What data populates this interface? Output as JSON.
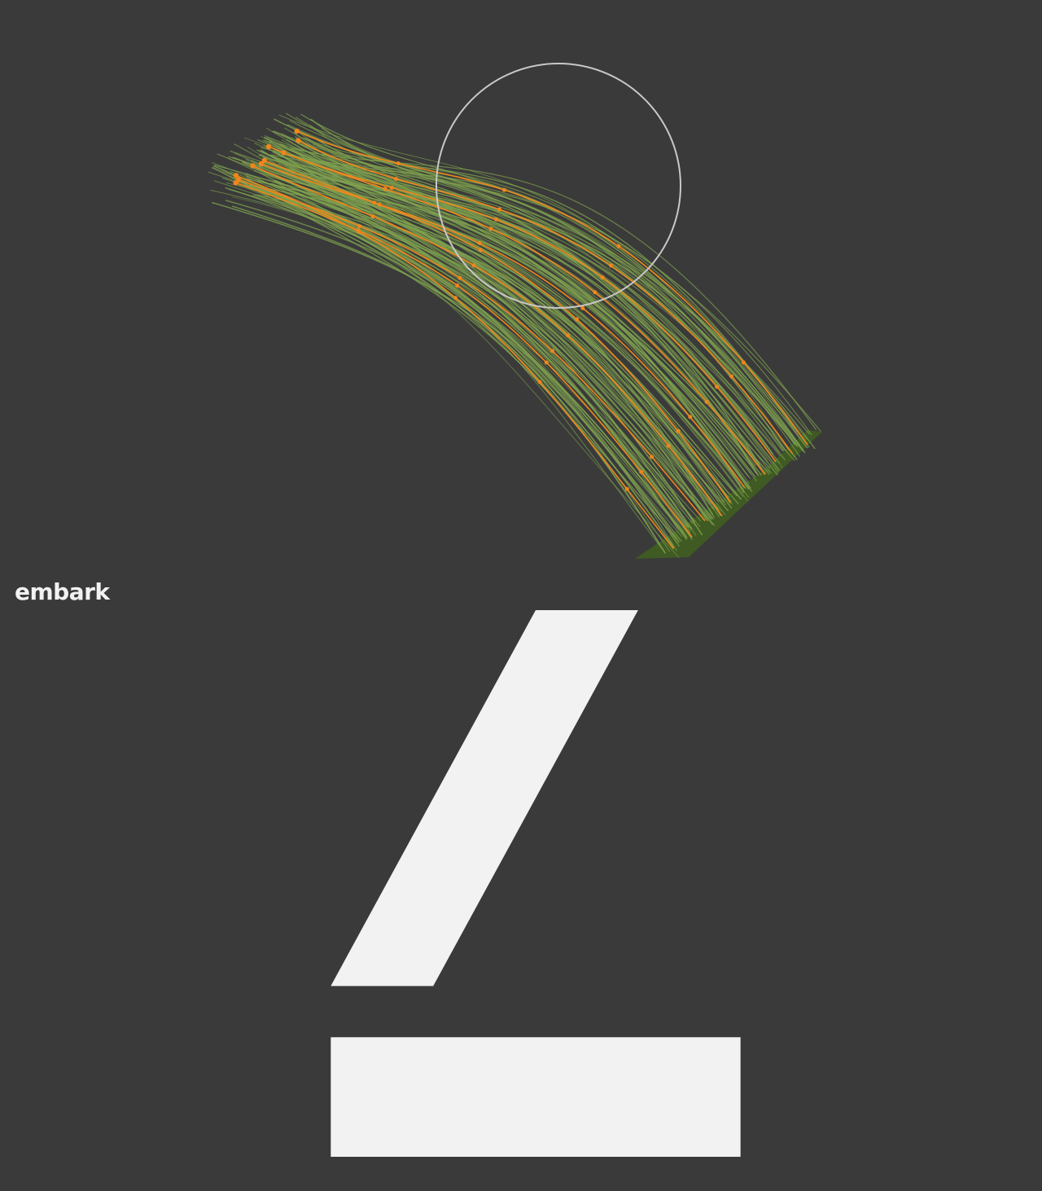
{
  "branding": {
    "logo_text": "embark",
    "logo_icon": "embark-logo-icon"
  },
  "colors": {
    "background": "#3a3a3a",
    "hair_strand": "#7fa24f",
    "guide_curve": "#f0861c",
    "brush_cursor": "#c8c8c8",
    "ground_patch": "#3f5a22",
    "logo": "#f2f2f2"
  },
  "scene": {
    "brush_cursor_icon": "brush-circle-icon",
    "guide_curve_count": 10,
    "hair_strand_count": 140
  }
}
